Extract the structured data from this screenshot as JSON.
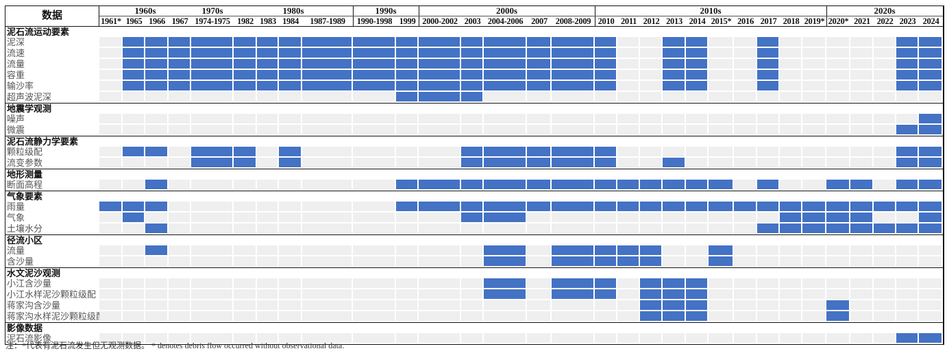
{
  "header": {
    "title": "数据"
  },
  "decades": [
    {
      "label": "1960s",
      "cols": [
        0,
        3
      ]
    },
    {
      "label": "1970s",
      "cols": [
        4,
        4
      ]
    },
    {
      "label": "1980s",
      "cols": [
        5,
        8
      ]
    },
    {
      "label": "1990s",
      "cols": [
        9,
        10
      ]
    },
    {
      "label": "2000s",
      "cols": [
        11,
        15
      ]
    },
    {
      "label": "2010s",
      "cols": [
        16,
        25
      ]
    },
    {
      "label": "2020s",
      "cols": [
        26,
        30
      ]
    }
  ],
  "columns": [
    "1961*",
    "1965",
    "1966",
    "1967",
    "1974-1975",
    "1982",
    "1983",
    "1984",
    "1987-1989",
    "1990-1998",
    "1999",
    "2000-2002",
    "2003",
    "2004-2006",
    "2007",
    "2008-2009",
    "2010",
    "2011",
    "2012",
    "2013",
    "2014",
    "2015*",
    "2016",
    "2017",
    "2018",
    "2019*",
    "2020*",
    "2021",
    "2022",
    "2023",
    "2024"
  ],
  "colors": {
    "observed": "#4472c4",
    "empty": "#efefef"
  },
  "sections": [
    {
      "title": "泥石流运动要素",
      "rows": [
        {
          "label": "泥深",
          "filled": [
            "1965",
            "1966",
            "1967",
            "1974-1975",
            "1982",
            "1983",
            "1984",
            "1987-1989",
            "1990-1998",
            "1999",
            "2000-2002",
            "2003",
            "2004-2006",
            "2007",
            "2008-2009",
            "2010",
            "2013",
            "2014",
            "2017",
            "2023",
            "2024"
          ]
        },
        {
          "label": "流速",
          "filled": [
            "1965",
            "1966",
            "1967",
            "1974-1975",
            "1982",
            "1983",
            "1984",
            "1987-1989",
            "1990-1998",
            "1999",
            "2000-2002",
            "2003",
            "2004-2006",
            "2007",
            "2008-2009",
            "2010",
            "2013",
            "2014",
            "2017",
            "2023",
            "2024"
          ]
        },
        {
          "label": "流量",
          "filled": [
            "1965",
            "1966",
            "1967",
            "1974-1975",
            "1982",
            "1983",
            "1984",
            "1987-1989",
            "1990-1998",
            "1999",
            "2000-2002",
            "2003",
            "2004-2006",
            "2007",
            "2008-2009",
            "2010",
            "2013",
            "2014",
            "2017",
            "2023",
            "2024"
          ]
        },
        {
          "label": "容重",
          "filled": [
            "1965",
            "1966",
            "1967",
            "1974-1975",
            "1982",
            "1983",
            "1984",
            "1987-1989",
            "1990-1998",
            "1999",
            "2000-2002",
            "2003",
            "2004-2006",
            "2007",
            "2008-2009",
            "2010",
            "2013",
            "2014",
            "2017",
            "2023",
            "2024"
          ]
        },
        {
          "label": "输沙率",
          "filled": [
            "1965",
            "1966",
            "1967",
            "1974-1975",
            "1982",
            "1983",
            "1984",
            "1987-1989",
            "1990-1998",
            "1999",
            "2000-2002",
            "2003",
            "2004-2006",
            "2007",
            "2008-2009",
            "2010",
            "2013",
            "2014",
            "2017",
            "2023",
            "2024"
          ]
        },
        {
          "label": "超声波泥深",
          "filled": [
            "1999",
            "2000-2002",
            "2003"
          ]
        }
      ]
    },
    {
      "title": "地震学观测",
      "rows": [
        {
          "label": "噪声",
          "filled": [
            "2024"
          ]
        },
        {
          "label": "微震",
          "filled": [
            "2023",
            "2024"
          ]
        }
      ]
    },
    {
      "title": "泥石流静力学要素",
      "rows": [
        {
          "label": "颗粒级配",
          "filled": [
            "1965",
            "1966",
            "1974-1975",
            "1982",
            "1984",
            "2003",
            "2004-2006",
            "2007",
            "2008-2009",
            "2010",
            "2023",
            "2024"
          ]
        },
        {
          "label": "流变参数",
          "filled": [
            "1974-1975",
            "1982",
            "1984",
            "2003",
            "2004-2006",
            "2007",
            "2008-2009",
            "2010",
            "2013",
            "2023",
            "2024"
          ]
        }
      ]
    },
    {
      "title": "地形测量",
      "rows": [
        {
          "label": "断面高程",
          "filled": [
            "1966",
            "1999",
            "2000-2002",
            "2003",
            "2004-2006",
            "2007",
            "2008-2009",
            "2010",
            "2011",
            "2012",
            "2013",
            "2014",
            "2015*",
            "2017",
            "2020*",
            "2021",
            "2023",
            "2024"
          ]
        }
      ]
    },
    {
      "title": "气象要素",
      "rows": [
        {
          "label": "雨量",
          "filled": [
            "1961*",
            "1965",
            "1966",
            "1999",
            "2000-2002",
            "2003",
            "2004-2006",
            "2007",
            "2008-2009",
            "2010",
            "2011",
            "2012",
            "2013",
            "2014",
            "2015*",
            "2016",
            "2017",
            "2018",
            "2019*",
            "2020*",
            "2021",
            "2022",
            "2023",
            "2024"
          ]
        },
        {
          "label": "气象",
          "filled": [
            "1965",
            "2003",
            "2004-2006",
            "2018",
            "2019*",
            "2020*",
            "2021",
            "2024"
          ]
        },
        {
          "label": "土壤水分",
          "filled": [
            "1966",
            "2017",
            "2018",
            "2019*",
            "2020*",
            "2021",
            "2022",
            "2023",
            "2024"
          ]
        }
      ]
    },
    {
      "title": "径流小区",
      "rows": [
        {
          "label": "流量",
          "filled": [
            "1966",
            "2004-2006",
            "2008-2009",
            "2010",
            "2011",
            "2012",
            "2015*"
          ]
        },
        {
          "label": "含沙量",
          "filled": [
            "2004-2006",
            "2008-2009",
            "2010",
            "2011",
            "2012",
            "2015*"
          ]
        }
      ]
    },
    {
      "title": "水文泥沙观测",
      "rows": [
        {
          "label": "小江含沙量",
          "filled": [
            "2004-2006",
            "2008-2009",
            "2010",
            "2012",
            "2013",
            "2014"
          ]
        },
        {
          "label": "小江水样泥沙颗粒级配",
          "filled": [
            "2004-2006",
            "2008-2009",
            "2010",
            "2012",
            "2013",
            "2014"
          ]
        },
        {
          "label": "蒋家沟含沙量",
          "filled": [
            "2012",
            "2013",
            "2014",
            "2020*"
          ]
        },
        {
          "label": "蒋家沟水样泥沙颗粒级配",
          "filled": [
            "2012",
            "2013",
            "2014",
            "2020*"
          ]
        }
      ]
    },
    {
      "title": "影像数据",
      "rows": [
        {
          "label": "泥石流影像",
          "filled": [
            "2023",
            "2024"
          ]
        }
      ]
    }
  ],
  "note": "注：*代表有泥石流发生但无观测数据。 * denotes debris flow occurred without observational data."
}
